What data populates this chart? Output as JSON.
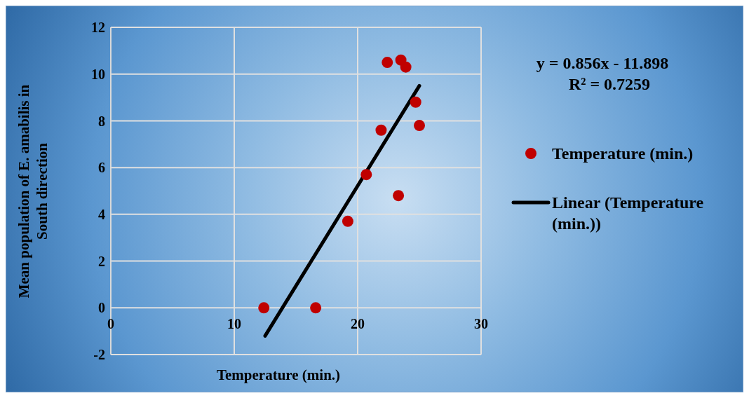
{
  "chart_data": {
    "type": "scatter",
    "xlabel": "Temperature (min.)",
    "ylabel": "Mean population of E. amabilis in South direction",
    "xlim": [
      0,
      30
    ],
    "xticks": [
      0,
      10,
      20,
      30
    ],
    "ylim": [
      -2,
      12
    ],
    "yticks": [
      -2,
      0,
      2,
      4,
      6,
      8,
      10,
      12
    ],
    "grid": true,
    "legend": "right",
    "annotations": [
      "y = 0.856x - 11.898",
      "R² = 0.7259"
    ],
    "series": [
      {
        "name": "Temperature (min.)",
        "marker": "circle",
        "color": "#c00000",
        "x": [
          12.4,
          16.6,
          19.2,
          20.7,
          21.9,
          22.4,
          23.5,
          23.9,
          23.3,
          24.7,
          25.0
        ],
        "values": [
          0,
          0,
          3.7,
          5.7,
          7.6,
          10.5,
          10.6,
          10.3,
          4.8,
          8.8,
          7.8
        ]
      },
      {
        "name": "Linear (Temperature (min.))",
        "type": "line",
        "marker": "none",
        "color": "#000000",
        "x": [
          12.5,
          25
        ],
        "values": [
          -1.2,
          9.5
        ]
      }
    ]
  }
}
